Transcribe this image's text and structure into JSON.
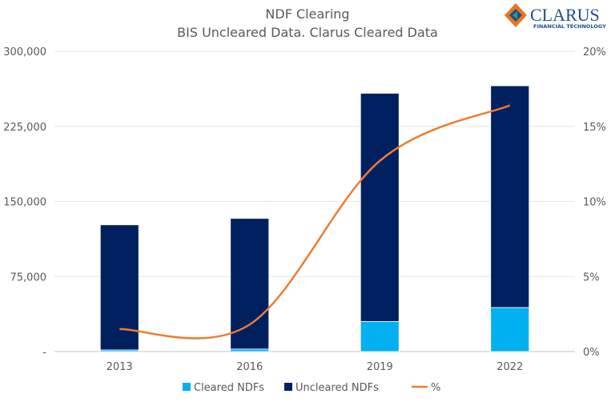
{
  "logo": {
    "text": "CLARUS",
    "subtext": "FINANCIAL TECHNOLOGY"
  },
  "chart_data": {
    "type": "bar",
    "title": "NDF Clearing",
    "subtitle": "BIS Uncleared Data. Clarus Cleared Data",
    "categories": [
      "2013",
      "2016",
      "2019",
      "2022"
    ],
    "stacked": true,
    "series": [
      {
        "name": "Cleared NDFs",
        "type": "bar",
        "axis": "left",
        "color": "#00B0F0",
        "values": [
          1600,
          2500,
          30000,
          44000
        ]
      },
      {
        "name": "Uncleared NDFs",
        "type": "bar",
        "axis": "left",
        "color": "#002060",
        "values": [
          125000,
          130500,
          228000,
          221500
        ]
      },
      {
        "name": "%",
        "type": "line",
        "axis": "right",
        "color": "#ED7D31",
        "values": [
          1.5,
          1.8,
          12.7,
          16.4
        ]
      }
    ],
    "ylim": [
      0,
      300000
    ],
    "yticks": [
      "-",
      "75,000",
      "150,000",
      "225,000",
      "300,000"
    ],
    "y2lim": [
      0,
      20
    ],
    "y2ticks": [
      "0%",
      "5%",
      "10%",
      "15%",
      "20%"
    ],
    "grid": true,
    "legend": "bottom"
  }
}
